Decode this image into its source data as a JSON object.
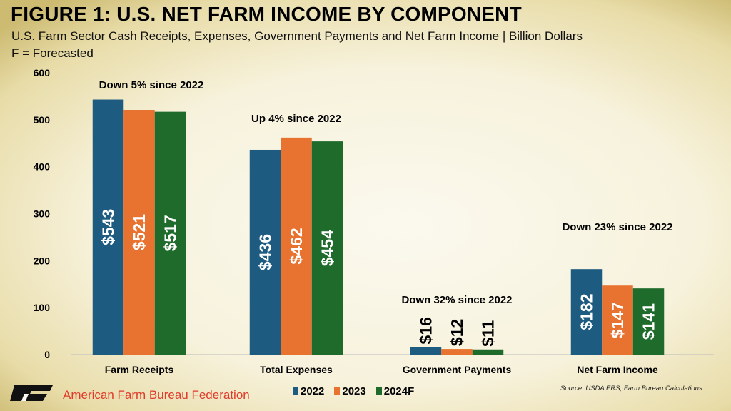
{
  "header": {
    "title": "FIGURE 1: U.S. NET FARM INCOME BY COMPONENT",
    "subtitle": "U.S. Farm Sector Cash Receipts, Expenses, Government Payments and Net Farm Income | Billion Dollars",
    "note": "F = Forecasted"
  },
  "footer": {
    "org": "American Farm Bureau Federation",
    "logo_text": "FB",
    "source": "Source: USDA ERS, Farm Bureau Calculations"
  },
  "colors": {
    "2022": "#1d5b80",
    "2023": "#e8722f",
    "2024F": "#1e6b2c"
  },
  "chart_data": {
    "type": "bar",
    "categories": [
      "Farm Receipts",
      "Total Expenses",
      "Government Payments",
      "Net Farm Income"
    ],
    "series": [
      {
        "name": "2022",
        "values": [
          543,
          436,
          16,
          182
        ]
      },
      {
        "name": "2023",
        "values": [
          521,
          462,
          12,
          147
        ]
      },
      {
        "name": "2024F",
        "values": [
          517,
          454,
          11,
          141
        ]
      }
    ],
    "data_labels": [
      [
        "$543",
        "$436",
        "$16",
        "$182"
      ],
      [
        "$521",
        "$462",
        "$12",
        "$147"
      ],
      [
        "$517",
        "$454",
        "$11",
        "$141"
      ]
    ],
    "annotations": [
      "Down 5% since 2022",
      "Up 4% since 2022",
      "Down 32% since 2022",
      "Down 23% since 2022"
    ],
    "ylim": [
      0,
      600
    ],
    "yticks": [
      0,
      100,
      200,
      300,
      400,
      500,
      600
    ],
    "grid": false,
    "legend": "bottom"
  }
}
